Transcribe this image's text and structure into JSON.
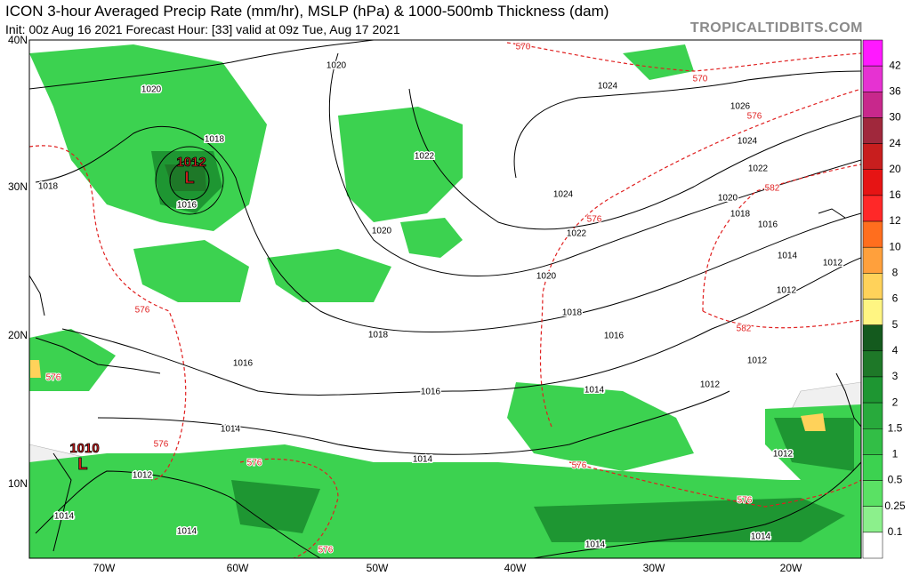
{
  "header": {
    "title": "ICON 3-hour Averaged Precip Rate (mm/hr), MSLP (hPa) & 1000-500mb Thickness (dam)",
    "subtitle": "Init: 00z Aug 16 2021   Forecast Hour: [33]   valid at 09z Tue, Aug 17 2021",
    "source": "TROPICALTIDBITS.COM"
  },
  "map": {
    "lat_labels": [
      "40N",
      "30N",
      "20N",
      "10N"
    ],
    "lon_labels": [
      "70W",
      "60W",
      "50W",
      "40W",
      "30W",
      "20W"
    ],
    "isobar_labels": [
      "1020",
      "1020",
      "1018",
      "1018",
      "1016",
      "1022",
      "1020",
      "1024",
      "1026",
      "1024",
      "1022",
      "1020",
      "1018",
      "1016",
      "1024",
      "1022",
      "1020",
      "1018",
      "1016",
      "1014",
      "1012",
      "1012",
      "1018",
      "1016",
      "1016",
      "1014",
      "1012",
      "1012",
      "1014",
      "1014",
      "1012",
      "1012",
      "1014",
      "1014",
      "1014",
      "1014"
    ],
    "thickness_labels": [
      "570",
      "570",
      "576",
      "576",
      "582",
      "582",
      "576",
      "576",
      "576",
      "576",
      "576",
      "576",
      "576"
    ],
    "lows": [
      {
        "pressure": "1012",
        "symbol": "L"
      },
      {
        "pressure": "1010",
        "symbol": "L"
      }
    ]
  },
  "colorbar": {
    "labels": [
      42,
      36,
      30,
      24,
      20,
      16,
      12,
      10,
      8,
      6,
      5,
      4,
      3,
      2,
      1.5,
      1,
      0.5,
      0.25,
      0.1
    ],
    "colors": [
      "#ff19ff",
      "#e632d2",
      "#c8288c",
      "#a0283c",
      "#c81e1e",
      "#e61414",
      "#ff2828",
      "#ff6e1e",
      "#ffa03c",
      "#ffd25a",
      "#fff582",
      "#145a1e",
      "#1e7828",
      "#1e9632",
      "#28aa3c",
      "#32be46",
      "#3cd250",
      "#5ae164",
      "#8cf08c",
      "#ffffff"
    ]
  }
}
